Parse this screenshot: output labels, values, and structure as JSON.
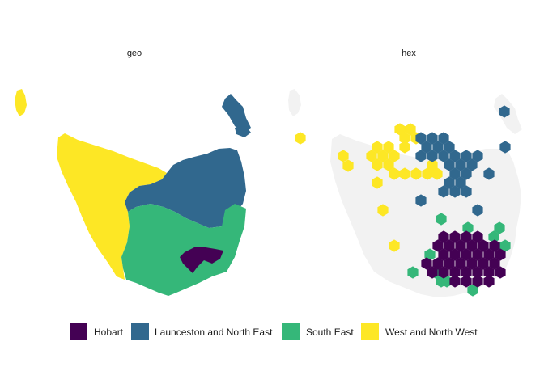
{
  "panels": [
    {
      "title": "geo",
      "style": "geographic regions"
    },
    {
      "title": "hex",
      "style": "hexagon tiles on grey basemap"
    }
  ],
  "basemap_color": "#f2f2f2",
  "legend": [
    {
      "label": "Hobart",
      "color": "#440154"
    },
    {
      "label": "Launceston and North East",
      "color": "#31688e"
    },
    {
      "label": "South East",
      "color": "#35b779"
    },
    {
      "label": "West and North West",
      "color": "#fde725"
    }
  ]
}
